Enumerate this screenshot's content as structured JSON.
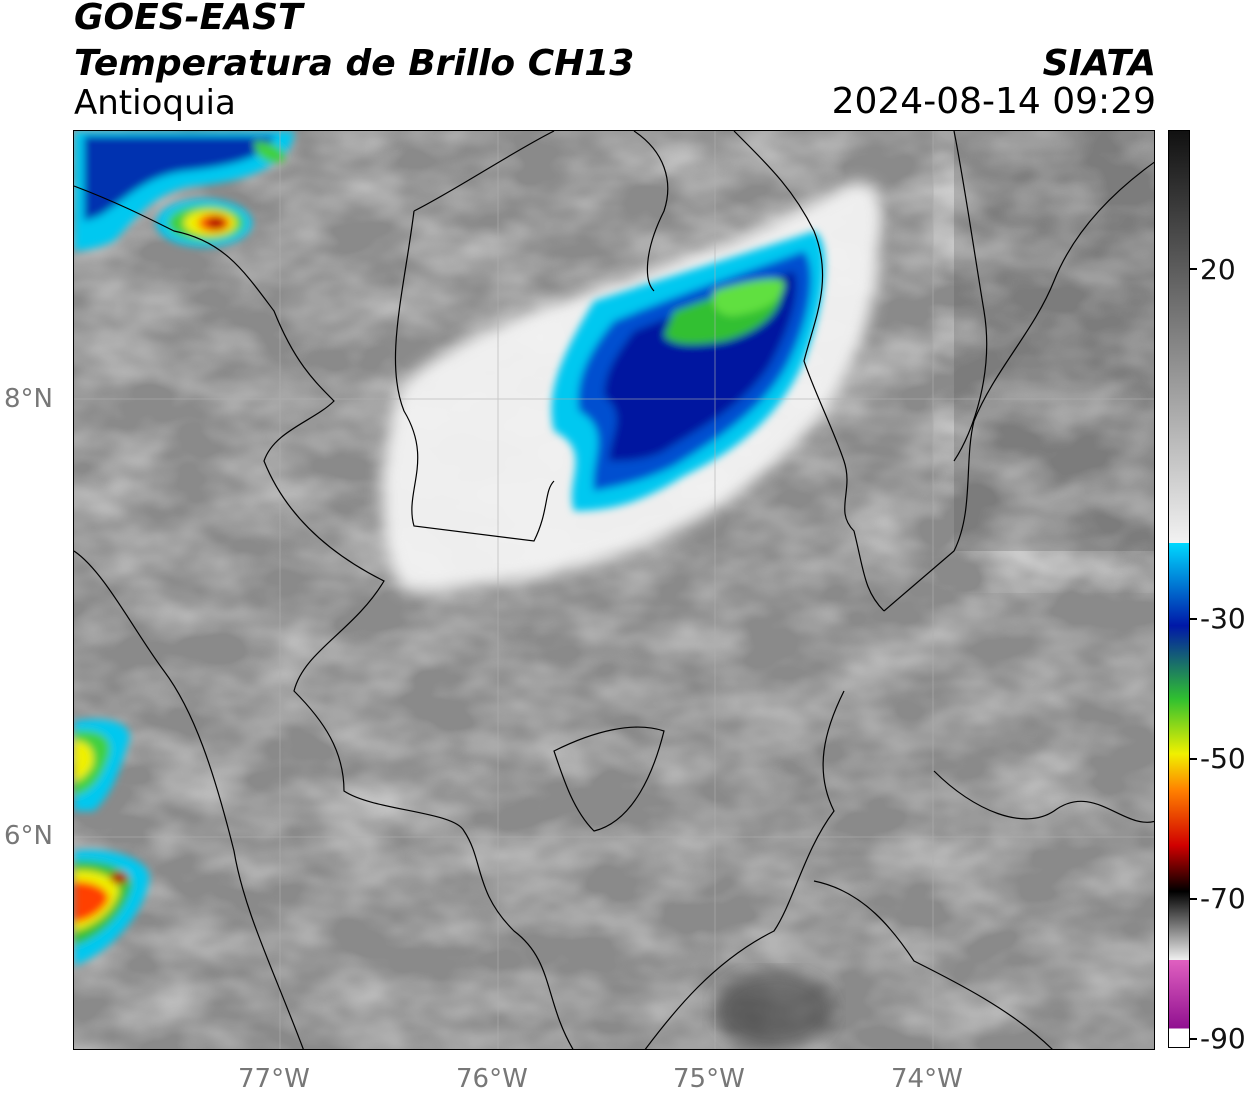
{
  "header": {
    "satellite": "GOES-EAST",
    "product": "Temperatura de Brillo CH13",
    "region": "Antioquia",
    "institution": "SIATA",
    "datetime": "2024-08-14 09:29"
  },
  "map": {
    "lon_ticks": [
      "77°W",
      "76°W",
      "75°W",
      "74°W"
    ],
    "lat_ticks": [
      "8°N",
      "6°N"
    ],
    "lon_range": [
      -77.95,
      -73.0
    ],
    "lat_range": [
      5.0,
      9.2
    ]
  },
  "colorbar": {
    "ticks": [
      "20",
      "-30",
      "-50",
      "-70",
      "-90"
    ],
    "tick_values": [
      20,
      -30,
      -50,
      -70,
      -90
    ],
    "range": [
      -90,
      40
    ],
    "colors": {
      "warm_gray_dark": "#111111",
      "warm_gray_light": "#f2f2f2",
      "cyan": "#00d8ff",
      "blue": "#0018a8",
      "green": "#30c030",
      "yellow": "#f0f000",
      "orange": "#ff8000",
      "red": "#d00000",
      "black": "#000000",
      "pink": "#e060c0",
      "purple": "#901090"
    }
  }
}
